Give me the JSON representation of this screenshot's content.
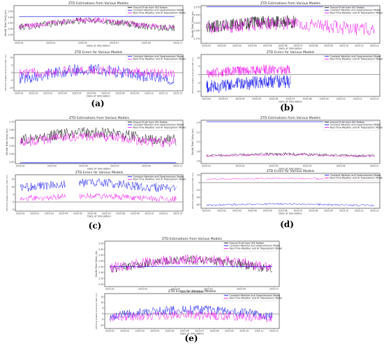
{
  "figure": {
    "panel_labels": [
      "(a)",
      "(b)",
      "(c)",
      "(d)",
      "(e)"
    ]
  },
  "colors": {
    "ground_truth": "#000000",
    "constant_model": "#0000ee",
    "real_time_model": "#ee00ee",
    "zero_line": "#444444"
  },
  "chart_data": [
    {
      "id": "a-top",
      "type": "line",
      "title": "ZTD Estimations from Various Models",
      "xlabel": "Date of Simulation",
      "ylabel": "Zenith Total Delay (m)",
      "xticks": [
        "2023-01",
        "2023-03",
        "2023-05",
        "2023-07",
        "2023-09",
        "2023-11"
      ],
      "yticks": [
        "2.25",
        "2.30",
        "2.35",
        "2.40",
        "2.45"
      ],
      "ylim": [
        2.2,
        2.5
      ],
      "legend": [
        "Ground Truth from IGS Station",
        "Constant Weather and Saastamoinen Model",
        "Real Time Weather and AI Tropospheric Model"
      ],
      "legend_position": "top-right",
      "series": [
        {
          "name": "Ground Truth from IGS Station",
          "kind": "noisy",
          "base": 2.34,
          "amp": 0.05,
          "noise": 0.03,
          "x0": 0.03,
          "x1": 0.95
        },
        {
          "name": "Constant Weather and Saastamoinen Model",
          "kind": "flat",
          "base": 2.405,
          "x0": 0.03,
          "x1": 0.95
        },
        {
          "name": "Real Time Weather and AI Tropospheric Model",
          "kind": "noisy",
          "base": 2.345,
          "amp": 0.05,
          "noise": 0.025,
          "x0": 0.03,
          "x1": 0.95
        }
      ]
    },
    {
      "id": "a-bottom",
      "type": "line",
      "title": "ZTD Errors for Various Models",
      "xlabel": "Date of Simulation",
      "ylabel": "ZTD Error Relative to Ground Truth (cm)",
      "xticks": [
        "2023-01",
        "2023-02",
        "2023-03",
        "2023-04",
        "2023-05",
        "2023-06",
        "2023-07",
        "2023-08",
        "2023-09",
        "2023-10",
        "2023-11",
        "2023-12"
      ],
      "yticks": [
        "-10",
        "-5",
        "0",
        "5",
        "10"
      ],
      "ylim": [
        -12,
        12
      ],
      "legend": [
        "Constant Weather and Saastamoinen Model",
        "Real Time Weather and AI Tropospheric Model"
      ],
      "legend_position": "top-right",
      "series": [
        {
          "name": "Constant Weather and Saastamoinen Model",
          "kind": "noisy",
          "base": -1,
          "amp": 5,
          "noise": 4,
          "x0": 0.03,
          "x1": 0.95
        },
        {
          "name": "Real Time Weather and AI Tropospheric Model",
          "kind": "noisy",
          "base": 0.5,
          "amp": 1.5,
          "noise": 3,
          "x0": 0.03,
          "x1": 0.95
        }
      ]
    },
    {
      "id": "b-top",
      "type": "line",
      "title": "ZTD Estimations from Various Models",
      "xlabel": "Date of Simulation",
      "ylabel": "Zenith Total Delay (m)",
      "xticks": [
        "2023-01",
        "2023-02",
        "2023-03",
        "2023-04",
        "2023-05",
        "2023-06",
        "2023-07",
        "2023-08",
        "2023-09",
        "2023-10",
        "2023-11",
        "2023-12"
      ],
      "yticks": [
        "2.175",
        "2.200",
        "2.225",
        "2.250",
        "2.275"
      ],
      "ylim": [
        2.16,
        2.28
      ],
      "legend": [
        "Ground Truth from IGS Station",
        "Constant Weather and Saastamoinen Model",
        "Real Time Weather and AI Tropospheric Model"
      ],
      "legend_position": "top-right",
      "series": [
        {
          "name": "Ground Truth from IGS Station",
          "kind": "noisy",
          "base": 2.22,
          "amp": 0.015,
          "noise": 0.02,
          "x0": 0.03,
          "x1": 0.53
        },
        {
          "name": "Constant Weather and Saastamoinen Model",
          "kind": "flat",
          "base": 2.276,
          "x0": 0.03,
          "x1": 0.97
        },
        {
          "name": "Real Time Weather and AI Tropospheric Model",
          "kind": "noisy",
          "base": 2.215,
          "amp": 0.015,
          "noise": 0.022,
          "x0": 0.03,
          "x1": 0.97
        }
      ]
    },
    {
      "id": "b-bottom",
      "type": "line",
      "title": "ZTD Errors for Various Models",
      "xlabel": "Date of Simulation",
      "ylabel": "ZTD Error Relative to Ground Truth (cm)",
      "xticks": [
        "2023-02",
        "2023-03",
        "2023-04",
        "2023-05",
        "2023-06",
        "2023-07",
        "2023-08",
        "2023-09",
        "2023-10",
        "2023-11",
        "2023-12"
      ],
      "yticks": [
        "-10",
        "-5",
        "0",
        "5",
        "10"
      ],
      "ylim": [
        -13,
        12
      ],
      "legend": [
        "Constant Weather and Saastamoinen Model",
        "Real Time Weather and AI Tropospheric Model"
      ],
      "legend_position": "top-right",
      "series": [
        {
          "name": "Constant Weather and Saastamoinen Model",
          "kind": "noisy",
          "base": -6,
          "amp": 3,
          "noise": 4,
          "x0": 0.03,
          "x1": 0.5
        },
        {
          "name": "Real Time Weather and AI Tropospheric Model",
          "kind": "noisy",
          "base": 2,
          "amp": 2,
          "noise": 3,
          "x0": 0.03,
          "x1": 0.5
        }
      ]
    },
    {
      "id": "c-top",
      "type": "line",
      "title": "ZTD Estimations from Various Models",
      "xlabel": "Date of Simulation",
      "ylabel": "Zenith Total Delay (m)",
      "xticks": [
        "2023-01",
        "2023-03",
        "2023-05",
        "2023-07",
        "2023-09",
        "2023-11"
      ],
      "yticks": [
        "2.45",
        "2.50",
        "2.55",
        "2.60",
        "2.65",
        "2.70"
      ],
      "ylim": [
        2.44,
        2.71
      ],
      "legend": [
        "Ground Truth from IGS Station",
        "Constant Weather and Saastamoinen Model",
        "Real Time Weather and AI Tropospheric Model"
      ],
      "legend_position": "top-right",
      "series": [
        {
          "name": "Ground Truth from IGS Station",
          "kind": "noisy",
          "base": 2.61,
          "amp": 0.04,
          "noise": 0.035,
          "x0": 0.03,
          "x1": 0.96
        },
        {
          "name": "Constant Weather and Saastamoinen Model",
          "kind": "flat",
          "base": 2.445,
          "x0": 0.03,
          "x1": 0.96
        },
        {
          "name": "Real Time Weather and AI Tropospheric Model",
          "kind": "noisy",
          "base": 2.59,
          "amp": 0.035,
          "noise": 0.03,
          "x0": 0.03,
          "x1": 0.96
        }
      ]
    },
    {
      "id": "c-bottom",
      "type": "line",
      "title": "ZTD Errors for Various Models",
      "xlabel": "Date of Simulation",
      "ylabel": "ZTD Error Relative to Ground Truth (cm)",
      "xticks": [
        "2023-01",
        "2023-02",
        "2023-03",
        "2023-04",
        "2023-05",
        "2023-06",
        "2023-07",
        "2023-08",
        "2023-09",
        "2023-10",
        "2023-11",
        "2023-12"
      ],
      "yticks": [
        "-5",
        "0",
        "5",
        "10",
        "15"
      ],
      "ylim": [
        -6,
        18
      ],
      "legend": [
        "Constant Weather and Saastamoinen Model",
        "Real Time Weather and AI Tropospheric Model"
      ],
      "legend_position": "top-right",
      "series": [
        {
          "name": "Constant Weather and Saastamoinen Model",
          "kind": "noisy",
          "base": 11,
          "amp": 3,
          "noise": 3,
          "x0": 0.03,
          "x1": 0.96,
          "gap": [
            0.3,
            0.38
          ]
        },
        {
          "name": "Real Time Weather and AI Tropospheric Model",
          "kind": "noisy",
          "base": 3,
          "amp": 1.5,
          "noise": 2,
          "x0": 0.03,
          "x1": 0.96,
          "gap": [
            0.3,
            0.38
          ]
        }
      ]
    },
    {
      "id": "d-top",
      "type": "line",
      "title": "ZTD Estimations from Various Models",
      "xlabel": "Date of Simulation",
      "ylabel": "Zenith Total Delay (m)",
      "xticks": [
        "2023-01",
        "2023-03",
        "2023-05",
        "2023-07",
        "2023-09",
        "2023-11"
      ],
      "yticks": [
        "1.6",
        "1.8",
        "2.0",
        "2.2",
        "2.4"
      ],
      "ylim": [
        1.55,
        2.45
      ],
      "legend": [
        "Ground Truth from IGS Station",
        "Constant Weather and Saastamoinen Model",
        "Real Time Weather and AI Tropospheric Model"
      ],
      "legend_position": "top-right",
      "series": [
        {
          "name": "Ground Truth from IGS Station",
          "kind": "noisy",
          "base": 1.73,
          "amp": 0.03,
          "noise": 0.03,
          "x0": 0.03,
          "x1": 0.97
        },
        {
          "name": "Constant Weather and Saastamoinen Model",
          "kind": "flat",
          "base": 2.42,
          "x0": 0.03,
          "x1": 0.97
        },
        {
          "name": "Real Time Weather and AI Tropospheric Model",
          "kind": "noisy",
          "base": 1.72,
          "amp": 0.025,
          "noise": 0.025,
          "x0": 0.03,
          "x1": 0.97
        }
      ]
    },
    {
      "id": "d-bottom",
      "type": "line",
      "title": "ZTD Errors for Various Models",
      "xlabel": "Date of Simulation",
      "ylabel": "ZTD Error Relative to Ground Truth (cm)",
      "xticks": [
        "2023-01",
        "2023-02",
        "2023-03",
        "2023-04",
        "2023-05",
        "2023-06",
        "2023-07",
        "2023-08",
        "2023-09",
        "2023-10",
        "2023-11",
        "2023-12"
      ],
      "yticks": [
        "-60",
        "-40",
        "-20",
        "0",
        "20"
      ],
      "ylim": [
        -70,
        25
      ],
      "legend": [
        "Constant Weather and Saastamoinen Model",
        "Real Time Weather and AI Tropospheric Model"
      ],
      "legend_position": "top-right",
      "series": [
        {
          "name": "Constant Weather and Saastamoinen Model",
          "kind": "noisy",
          "base": -60,
          "amp": 3,
          "noise": 2.5,
          "x0": 0.03,
          "x1": 0.97
        },
        {
          "name": "Real Time Weather and AI Tropospheric Model",
          "kind": "noisy",
          "base": 10,
          "amp": 2,
          "noise": 2,
          "x0": 0.03,
          "x1": 0.97
        }
      ]
    },
    {
      "id": "e-top",
      "type": "line",
      "title": "ZTD Estimations from Various Models",
      "xlabel": "Date of Simulation",
      "ylabel": "Zenith Total Delay (m)",
      "xticks": [
        "2023-01",
        "2023-03",
        "2023-05",
        "2023-07",
        "2023-09",
        "2023-11"
      ],
      "yticks": [
        "2.20",
        "2.25",
        "2.30",
        "2.35",
        "2.40",
        "2.45",
        "2.50",
        "2.55"
      ],
      "ylim": [
        2.18,
        2.57
      ],
      "legend": [
        "Ground Truth from IGS Station",
        "Constant Weather and Saastamoinen Model",
        "Real Time Weather and AI Tropospheric Model"
      ],
      "legend_position": "top-right",
      "series": [
        {
          "name": "Ground Truth from IGS Station",
          "kind": "hump",
          "base": 2.37,
          "amp": 0.09,
          "noise": 0.04,
          "x0": 0.03,
          "x1": 0.96
        },
        {
          "name": "Constant Weather and Saastamoinen Model",
          "kind": "flat",
          "base": 2.35,
          "x0": 0.03,
          "x1": 0.96
        },
        {
          "name": "Real Time Weather and AI Tropospheric Model",
          "kind": "hump",
          "base": 2.38,
          "amp": 0.08,
          "noise": 0.045,
          "x0": 0.03,
          "x1": 0.96
        }
      ]
    },
    {
      "id": "e-bottom",
      "type": "line",
      "title": "ZTD Errors for Various Models",
      "xlabel": "Date of Simulation",
      "ylabel": "ZTD Error Relative to Ground Truth (cm)",
      "xticks": [
        "2023-01",
        "2023-02",
        "2023-03",
        "2023-04",
        "2023-05",
        "2023-06",
        "2023-07",
        "2023-08",
        "2023-09",
        "2023-10",
        "2023-11",
        "2023-12"
      ],
      "yticks": [
        "-10",
        "-5",
        "0",
        "5",
        "10",
        "15"
      ],
      "ylim": [
        -13,
        18
      ],
      "legend": [
        "Constant Weather and Saastamoinen Model",
        "Real Time Weather and AI Tropospheric Model"
      ],
      "legend_position": "top-right",
      "series": [
        {
          "name": "Constant Weather and Saastamoinen Model",
          "kind": "hump",
          "base": 1,
          "amp": 7,
          "noise": 4,
          "x0": 0.03,
          "x1": 0.96
        },
        {
          "name": "Real Time Weather and AI Tropospheric Model",
          "kind": "noisy",
          "base": -2,
          "amp": 2,
          "noise": 4,
          "x0": 0.03,
          "x1": 0.96
        }
      ]
    }
  ]
}
